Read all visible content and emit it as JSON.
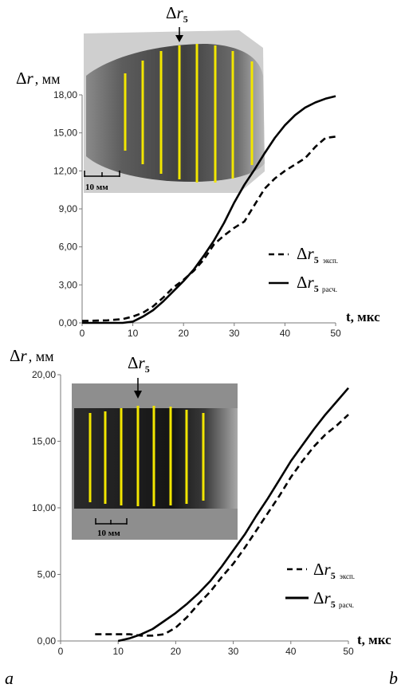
{
  "chart_data": [
    {
      "type": "line",
      "panel_label": "a",
      "ylabel": "Δr, мм",
      "xlabel": "t, мкс",
      "xlim": [
        0,
        50
      ],
      "ylim": [
        0,
        18
      ],
      "x_ticks": [
        "0",
        "10",
        "20",
        "30",
        "40",
        "50"
      ],
      "y_ticks": [
        "0,00",
        "3,00",
        "6,00",
        "9,00",
        "12,00",
        "15,00",
        "18,00"
      ],
      "inset": {
        "arrow_label": "Δr5",
        "scale_label": "10 мм",
        "style": "grey-photo"
      },
      "series": [
        {
          "name": "Δr5 эксп.",
          "style": "dashed",
          "x": [
            0,
            5,
            8,
            10,
            12,
            14,
            16,
            18,
            20,
            22,
            24,
            26,
            28,
            30,
            32,
            34,
            36,
            38,
            40,
            42,
            44,
            46,
            48,
            50
          ],
          "y": [
            0.15,
            0.2,
            0.3,
            0.5,
            0.8,
            1.3,
            2.0,
            2.8,
            3.4,
            4.1,
            5.0,
            6.2,
            6.9,
            7.5,
            8.0,
            9.3,
            10.6,
            11.4,
            12.0,
            12.5,
            13.0,
            13.9,
            14.6,
            14.7
          ]
        },
        {
          "name": "Δr5 расч.",
          "style": "solid",
          "x": [
            0,
            5,
            8,
            10,
            12,
            14,
            16,
            18,
            20,
            22,
            24,
            26,
            28,
            30,
            32,
            34,
            36,
            38,
            40,
            42,
            44,
            46,
            48,
            50
          ],
          "y": [
            0,
            0,
            0,
            0.1,
            0.5,
            1.0,
            1.7,
            2.5,
            3.3,
            4.2,
            5.3,
            6.5,
            7.9,
            9.5,
            10.9,
            12.1,
            13.4,
            14.6,
            15.6,
            16.4,
            17.0,
            17.4,
            17.7,
            17.9
          ]
        }
      ]
    },
    {
      "type": "line",
      "panel_label": "b",
      "ylabel": "Δr, мм",
      "xlabel": "t, мкс",
      "xlim": [
        0,
        50
      ],
      "ylim": [
        0,
        20
      ],
      "x_ticks": [
        "0",
        "10",
        "20",
        "30",
        "40",
        "50"
      ],
      "y_ticks": [
        "0,00",
        "5,00",
        "10,00",
        "15,00",
        "20,00"
      ],
      "inset": {
        "arrow_label": "Δr5",
        "scale_label": "10 мм",
        "style": "dark-photo"
      },
      "series": [
        {
          "name": "Δr5 эксп.",
          "style": "dashed",
          "x": [
            6,
            8,
            10,
            12,
            14,
            16,
            18,
            20,
            22,
            24,
            26,
            28,
            30,
            32,
            34,
            36,
            38,
            40,
            42,
            44,
            46,
            48,
            50
          ],
          "y": [
            0.5,
            0.5,
            0.5,
            0.5,
            0.4,
            0.4,
            0.5,
            1.0,
            1.8,
            2.8,
            3.7,
            4.8,
            5.8,
            7.0,
            8.3,
            9.6,
            10.9,
            12.3,
            13.5,
            14.6,
            15.5,
            16.2,
            17.0
          ]
        },
        {
          "name": "Δr5 расч.",
          "style": "solid",
          "x": [
            10,
            12,
            14,
            16,
            18,
            20,
            22,
            24,
            26,
            28,
            30,
            32,
            34,
            36,
            38,
            40,
            42,
            44,
            46,
            48,
            50
          ],
          "y": [
            0,
            0.2,
            0.5,
            0.9,
            1.5,
            2.1,
            2.8,
            3.6,
            4.5,
            5.6,
            6.8,
            8.0,
            9.4,
            10.7,
            12.1,
            13.5,
            14.7,
            15.9,
            17.0,
            18.0,
            19.0
          ]
        }
      ]
    }
  ]
}
